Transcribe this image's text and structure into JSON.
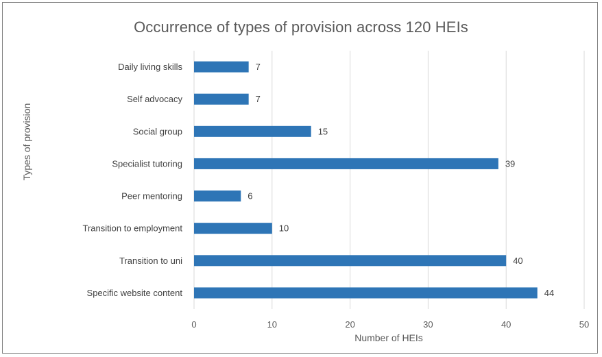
{
  "chart_data": {
    "type": "bar",
    "orientation": "horizontal",
    "title": "Occurrence of types of provision across 120 HEIs",
    "xlabel": "Number  of HEIs",
    "ylabel": "Types of provision",
    "categories": [
      "Daily living skills",
      "Self advocacy",
      "Social group",
      "Specialist tutoring",
      "Peer mentoring",
      "Transition to employment",
      "Transition to uni",
      "Specific website content"
    ],
    "values": [
      7,
      7,
      15,
      39,
      6,
      10,
      40,
      44
    ],
    "xlim": [
      0,
      50
    ],
    "xticks": [
      0,
      10,
      20,
      30,
      40,
      50
    ],
    "grid": "vertical",
    "data_labels": true,
    "bar_color": "#2e75b6"
  }
}
